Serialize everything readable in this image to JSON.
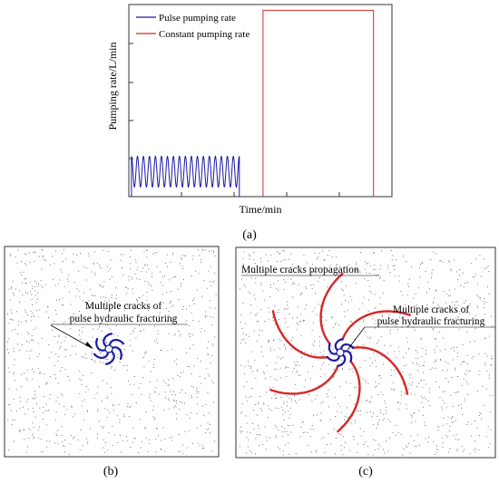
{
  "panel_a": {
    "caption": "(a)",
    "xlabel": "Time/min",
    "ylabel": "Pumping rate/L/min",
    "legend": [
      {
        "label": "Pulse pumping rate",
        "color": "#1a1aa6"
      },
      {
        "label": "Constant pumping rate",
        "color": "#d62728"
      }
    ]
  },
  "panel_b": {
    "caption": "(b)",
    "label_line1": "Multiple cracks of",
    "label_line2": "pulse hydraulic fracturing",
    "crack_color": "#1a1aa6"
  },
  "panel_c": {
    "caption": "(c)",
    "label_top": "Multiple cracks propagation",
    "label_line1": "Multiple cracks of",
    "label_line2": "pulse hydraulic fracturing",
    "inner_color": "#1a1aa6",
    "outer_color": "#d62728"
  },
  "chart_data": {
    "type": "line",
    "xlabel": "Time/min",
    "ylabel": "Pumping rate/L/min",
    "ylim": [
      0,
      1
    ],
    "series": [
      {
        "name": "Pulse pumping rate",
        "shape": "sinusoidal pulses",
        "low": 0.05,
        "high": 0.21,
        "oscillations": 18,
        "start": 0.01,
        "end": 0.42
      },
      {
        "name": "Constant pumping rate",
        "shape": "rectangular plateau",
        "level": 0.97,
        "start": 0.51,
        "end": 0.93
      }
    ],
    "grid": false
  }
}
